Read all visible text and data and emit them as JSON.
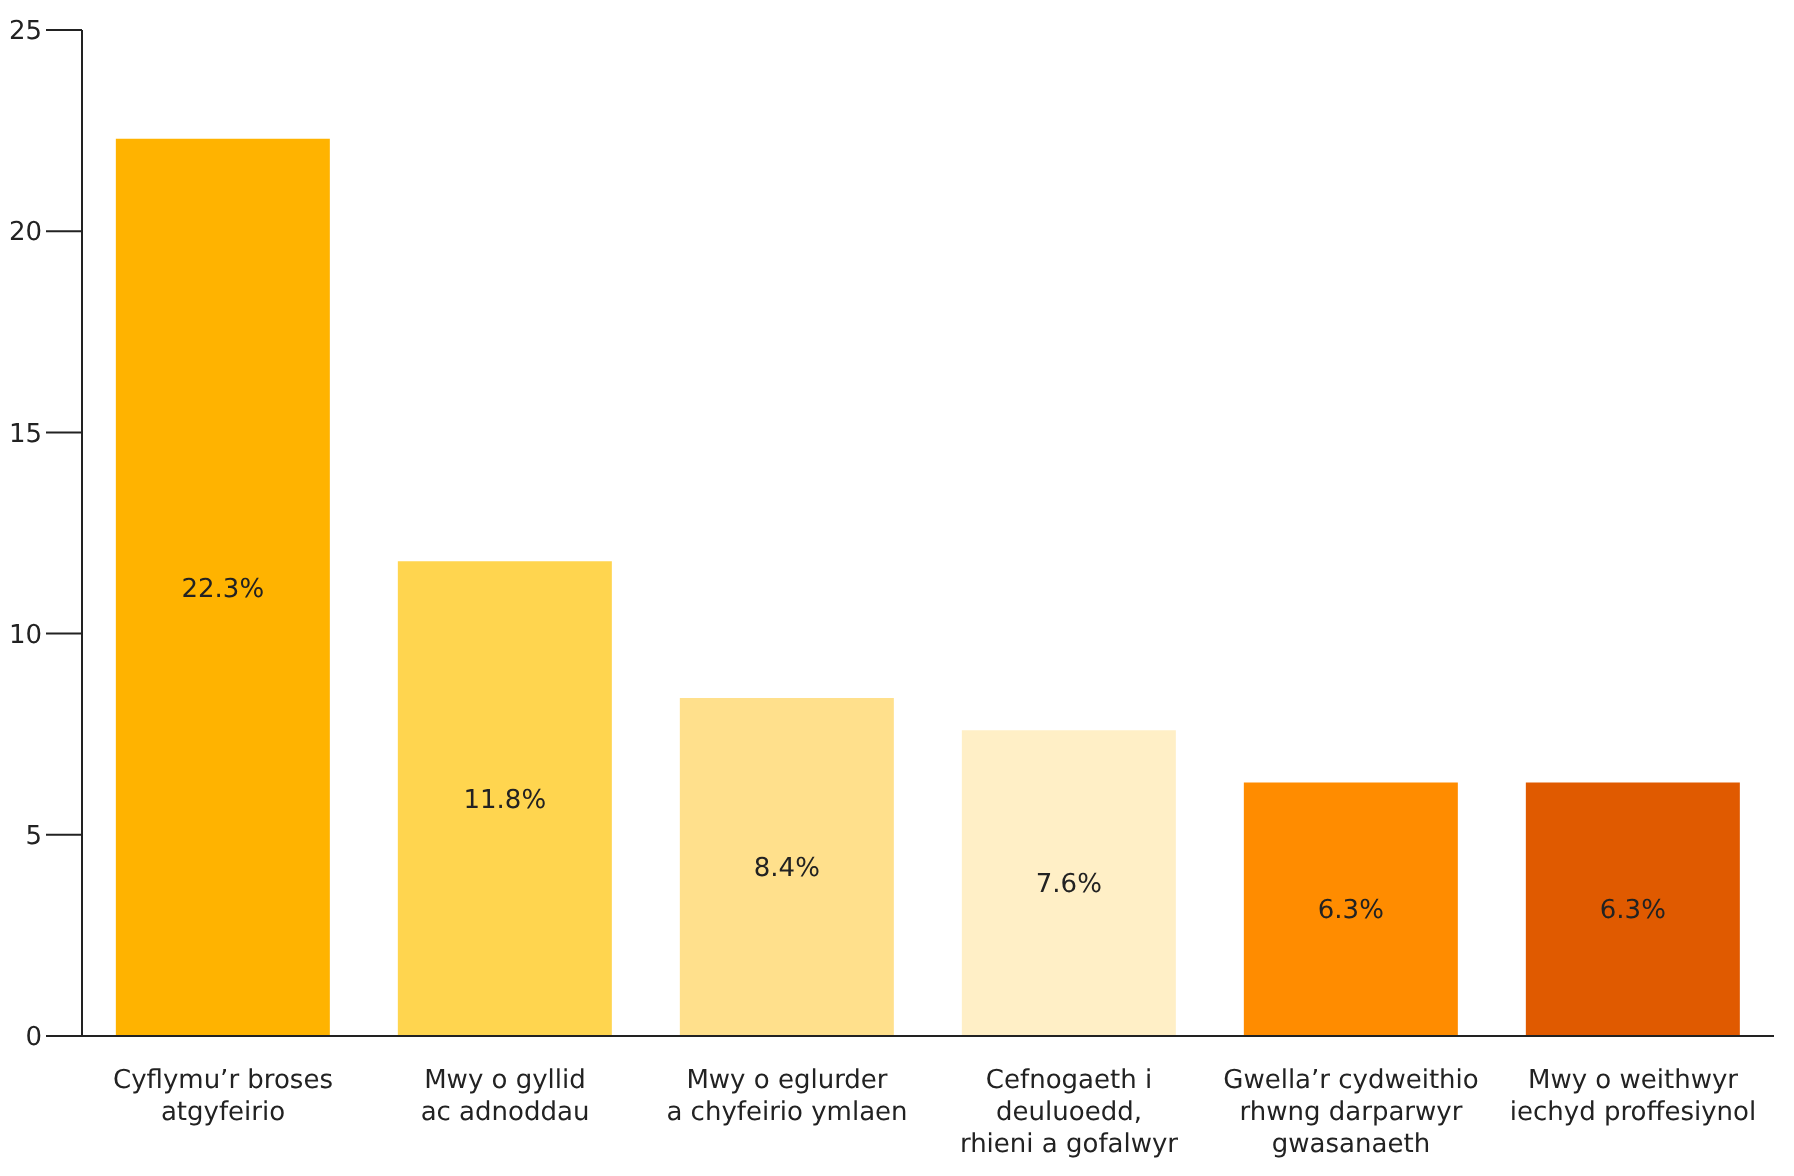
{
  "chart_data": {
    "type": "bar",
    "categories": [
      "Cyflymu’r broses\natgyfeirio",
      "Mwy o gyllid\nac adnoddau",
      "Mwy o eglurder\na chyfeirio ymlaen",
      "Cefnogaeth i\ndeuluoedd,\nrhieni a gofalwyr",
      "Gwella’r cydweithio\nrhwng darparwyr\ngwasanaeth",
      "Mwy o weithwyr\niechyd proffesiynol"
    ],
    "values": [
      22.3,
      11.8,
      8.4,
      7.6,
      6.3,
      6.3
    ],
    "value_labels": [
      "22.3%",
      "11.8%",
      "8.4%",
      "7.6%",
      "6.3%",
      "6.3%"
    ],
    "colors": [
      "#ffb300",
      "#ffd54f",
      "#ffe08c",
      "#ffefc6",
      "#ff8c00",
      "#e05a00"
    ],
    "ylim": [
      0,
      25
    ],
    "yticks": [
      0,
      5,
      10,
      15,
      20,
      25
    ],
    "grid": false
  }
}
